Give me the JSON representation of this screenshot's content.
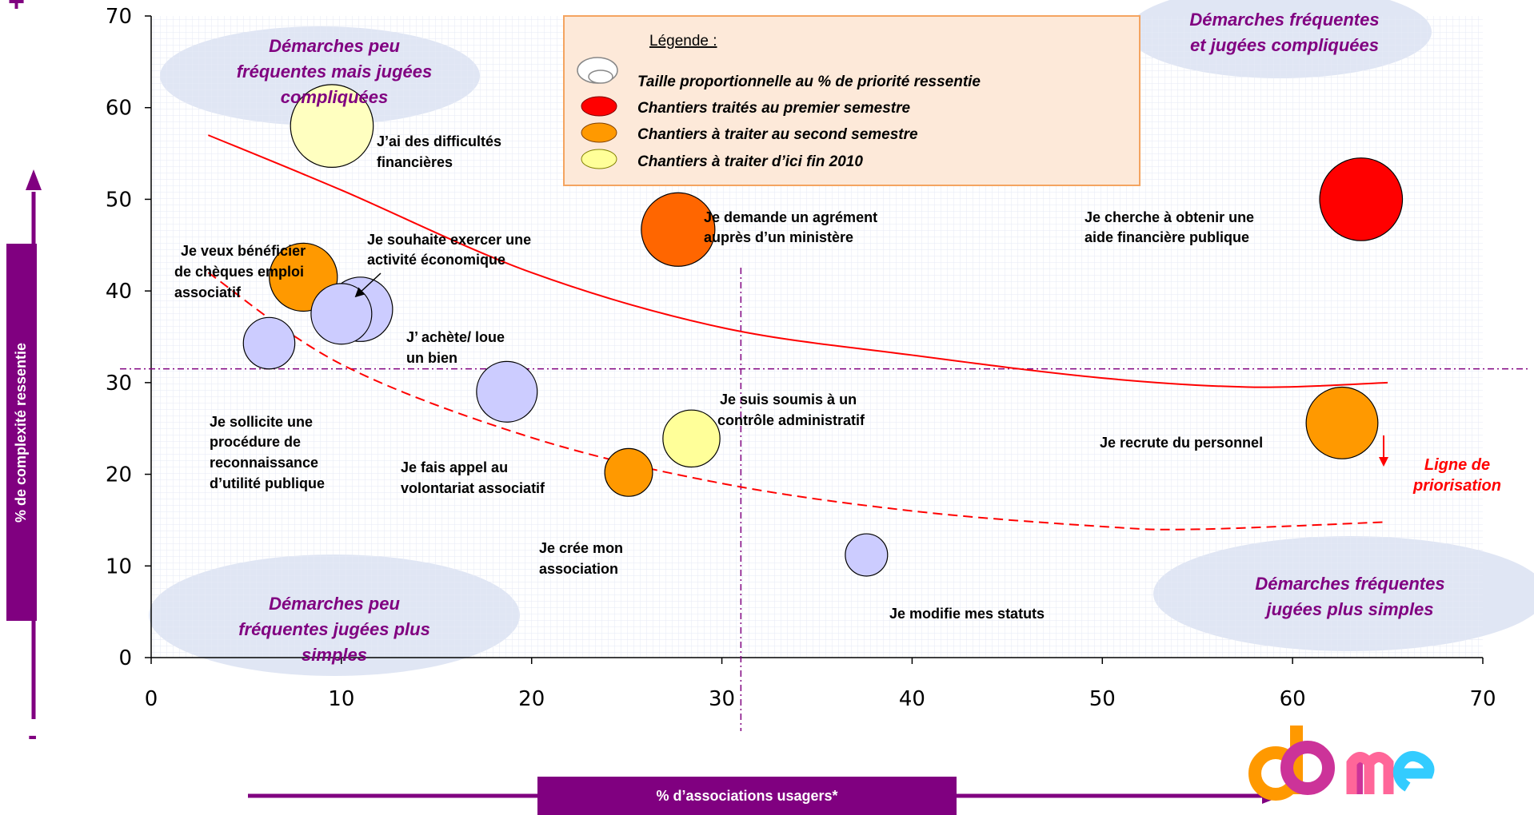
{
  "chart_data": {
    "type": "scatter",
    "xlabel": "% d’associations usagers*",
    "ylabel": "% de complexité ressentie",
    "xlim": [
      0,
      70
    ],
    "ylim": [
      0,
      70
    ],
    "x_ticks": [
      "0",
      "10",
      "20",
      "30",
      "40",
      "50",
      "60",
      "70"
    ],
    "y_ticks": [
      "0",
      "10",
      "20",
      "30",
      "40",
      "50",
      "60",
      "70"
    ],
    "y_axis_plus": "+",
    "y_axis_minus": "-",
    "bubble_label": "J’ai des difficultés financières",
    "points": [
      {
        "label": "J’ai des difficultés financières",
        "x": 9.5,
        "y": 58,
        "size": 4.5,
        "color": "#ffffc0"
      },
      {
        "label": "Je veux bénéficier de chèques emploi associatif",
        "x": 8,
        "y": 41.5,
        "size": 3.7,
        "color": "#ff9900"
      },
      {
        "label": "Je souhaite exercer une activité économique",
        "x": 11,
        "y": 38,
        "size": 3.5,
        "color": "#ccccff"
      },
      {
        "label": "",
        "x": 10,
        "y": 37.5,
        "size": 3.3,
        "color": "#ccccff"
      },
      {
        "label": "Je sollicite une procédure de reconnaissance d’utilité publique",
        "x": 6.2,
        "y": 34.3,
        "size": 2.8,
        "color": "#ccccff"
      },
      {
        "label": "J’ achète/ loue un bien",
        "x": 18.7,
        "y": 29,
        "size": 3.3,
        "color": "#ccccff"
      },
      {
        "label": "Je demande un agrément auprès d’un ministère",
        "x": 27.7,
        "y": 46.7,
        "size": 4.0,
        "color": "#ff6600"
      },
      {
        "label": "Je suis soumis à un contrôle administratif",
        "x": 28.4,
        "y": 23.9,
        "size": 3.1,
        "color": "#ffff99"
      },
      {
        "label": "Je fais appel au volontariat associatif",
        "x": 25.1,
        "y": 20.2,
        "size": 2.6,
        "color": "#ff9900"
      },
      {
        "label": "Je modifie mes statuts",
        "x": 37.6,
        "y": 11.2,
        "size": 2.3,
        "color": "#ccccff"
      },
      {
        "label": "Je cherche à obtenir une aide financière publique",
        "x": 63.6,
        "y": 50,
        "size": 4.5,
        "color": "#ff0000"
      },
      {
        "label": "Je recrute du personnel",
        "x": 62.6,
        "y": 25.6,
        "size": 3.9,
        "color": "#ff9900"
      }
    ],
    "point_labels": [
      "J’ai des difficultés",
      "financières",
      "Je veux bénéficier",
      "de chèques emploi",
      "associatif",
      "Je souhaite exercer une",
      "activité économique",
      "J’ achète/ loue",
      "un bien",
      "Je sollicite une",
      "procédure de",
      "reconnaissance",
      "d’utilité publique",
      "Je fais appel au",
      "volontariat associatif",
      "Je crée mon",
      "association",
      "Je demande un agrément",
      "auprès d’un ministère",
      "Je suis soumis à un",
      "contrôle administratif",
      "Je modifie mes statuts",
      "Je cherche à obtenir une",
      "aide financière publique",
      "Je recrute du personnel"
    ],
    "quadrants": [
      "Démarches peu",
      "fréquentes mais jugées",
      "compliquées",
      "Démarches fréquentes",
      "et jugées compliquées",
      "Démarches peu",
      "fréquentes jugées plus",
      "simples",
      "Démarches fréquentes",
      "jugées plus simples"
    ],
    "legend": {
      "title": "Légende :",
      "entries": [
        {
          "label": "Taille proportionnelle au % de priorité ressentie",
          "color": "#ffffff"
        },
        {
          "label": "Chantiers traités au premier semestre",
          "color": "#ff0000"
        },
        {
          "label": "Chantiers à traiter au second semestre",
          "color": "#ff9900"
        },
        {
          "label": "Chantiers à traiter d’ici fin 2010",
          "color": "#ffff99"
        }
      ]
    },
    "reference_lines": {
      "x": 31,
      "y": 31.5
    },
    "priority_line_label": [
      "Ligne de",
      "priorisation"
    ],
    "priority_curve": [
      [
        3,
        57
      ],
      [
        10,
        51
      ],
      [
        20,
        42
      ],
      [
        30,
        36
      ],
      [
        40,
        33
      ],
      [
        50,
        30.5
      ],
      [
        58,
        29.5
      ],
      [
        65,
        30
      ]
    ],
    "dashed_curve": [
      [
        3,
        42
      ],
      [
        10,
        32
      ],
      [
        20,
        24
      ],
      [
        30,
        19
      ],
      [
        40,
        16
      ],
      [
        50,
        14.3
      ],
      [
        55,
        14
      ],
      [
        65,
        14.8
      ]
    ]
  },
  "logo": {
    "text": "dome",
    "colors": [
      "#ff9900",
      "#cc3399",
      "#ff6699",
      "#33ccff"
    ]
  }
}
